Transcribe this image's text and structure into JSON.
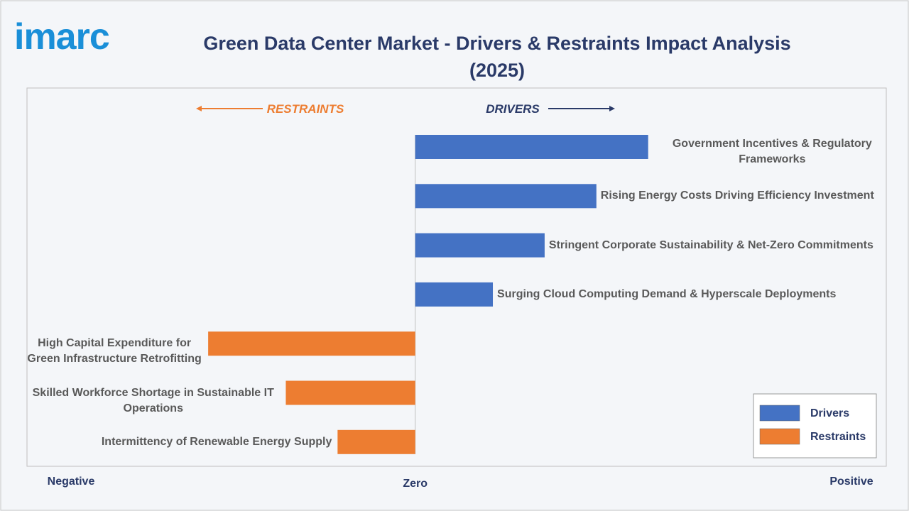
{
  "logo": "imarc",
  "chart_data": {
    "type": "bar",
    "orientation": "horizontal",
    "title": "Green Data Center Market - Drivers & Restraints Impact Analysis (2025)",
    "restraints_label": "RESTRAINTS",
    "drivers_label": "DRIVERS",
    "axis_labels": [
      "Negative",
      "Zero",
      "Positive"
    ],
    "categories": [
      "Government Incentives & Regulatory Frameworks",
      "Rising Energy Costs Driving Efficiency Investment",
      "Stringent Corporate Sustainability & Net-Zero Commitments",
      "Surging Cloud Computing Demand & Hyperscale Deployments",
      "High Capital Expenditure for Green Infrastructure Retrofitting",
      "Skilled Workforce Shortage in Sustainable IT Operations",
      "Intermittency of Renewable Energy Supply"
    ],
    "series": [
      {
        "name": "Drivers",
        "color": "#4472c4",
        "values": [
          4.5,
          3.5,
          2.5,
          1.5,
          null,
          null,
          null
        ]
      },
      {
        "name": "Restraints",
        "color": "#ed7d31",
        "values": [
          null,
          null,
          null,
          null,
          -4,
          -2.5,
          -1.5
        ]
      }
    ],
    "xlim": [
      -7.5,
      9.1
    ],
    "legend": "lower-right"
  }
}
